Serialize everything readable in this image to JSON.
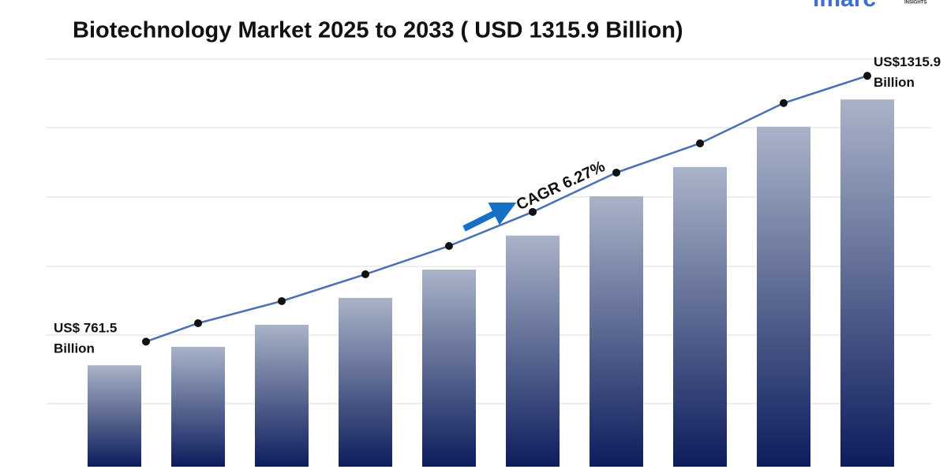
{
  "chart_data": {
    "type": "bar",
    "title": "Biotechnology Market 2025 to 2033 ( USD 1315.9 Billion)",
    "values": [
      761.5,
      800,
      846,
      902,
      961,
      1032,
      1114,
      1175,
      1259,
      1315.9
    ],
    "value_labels": [
      "US$ 761.5 Billion",
      null,
      null,
      null,
      null,
      null,
      null,
      null,
      null,
      "US$1315.9 Billion"
    ],
    "ylim": [
      550,
      1400
    ],
    "color": "#0d1d5c",
    "line_color": "#4a6fb5",
    "annotation": "CAGR 6.27%",
    "logo": "imarc",
    "logo_subtitle": "INSIGHTS"
  }
}
